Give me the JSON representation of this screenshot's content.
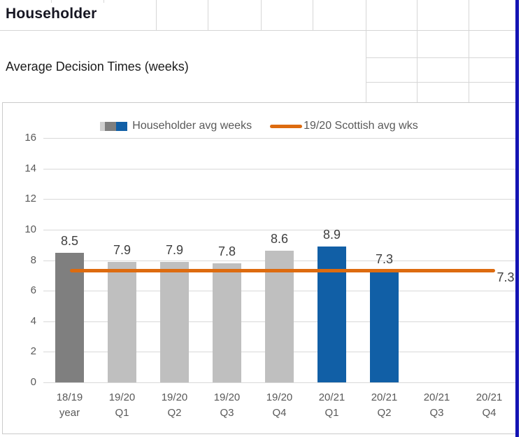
{
  "colors": {
    "bar_gray_dark": "#7f7f7f",
    "bar_gray_light": "#bfbfbf",
    "bar_blue": "#115fa6",
    "line_orange": "#dd6b0f",
    "gridline": "#d9d9d9",
    "axis_text": "#595959",
    "data_label": "#3f3f3f",
    "sheet_grid": "#d6d6d6",
    "chart_border": "#cbcbcb",
    "right_edge_strip": "#1414b4",
    "title_text": "#161622",
    "legend_swatch_extra": "#cfcfcf"
  },
  "sheet": {
    "cell_title": "Householder",
    "cell_subtitle": "Average Decision Times (weeks)"
  },
  "chart_data": {
    "type": "bar",
    "title": "",
    "categories": [
      "18/19 year",
      "19/20 Q1",
      "19/20 Q2",
      "19/20 Q3",
      "19/20 Q4",
      "20/21 Q1",
      "20/21 Q2",
      "20/21 Q3",
      "20/21 Q4"
    ],
    "categories_lines": [
      [
        "18/19",
        "year"
      ],
      [
        "19/20",
        "Q1"
      ],
      [
        "19/20",
        "Q2"
      ],
      [
        "19/20",
        "Q3"
      ],
      [
        "19/20",
        "Q4"
      ],
      [
        "20/21",
        "Q1"
      ],
      [
        "20/21",
        "Q2"
      ],
      [
        "20/21",
        "Q3"
      ],
      [
        "20/21",
        "Q4"
      ]
    ],
    "series": [
      {
        "name": "Householder avg weeks",
        "type": "bar",
        "values": [
          8.5,
          7.9,
          7.9,
          7.8,
          8.6,
          8.9,
          7.3,
          null,
          null
        ],
        "data_labels": [
          "8.5",
          "7.9",
          "7.9",
          "7.8",
          "8.6",
          "8.9",
          "7.3",
          "",
          ""
        ],
        "point_colors": [
          "#7f7f7f",
          "#bfbfbf",
          "#bfbfbf",
          "#bfbfbf",
          "#bfbfbf",
          "#115fa6",
          "#115fa6",
          null,
          null
        ]
      },
      {
        "name": "19/20 Scottish avg wks",
        "type": "line",
        "value": 7.3,
        "end_label": "7.3",
        "color": "#dd6b0f"
      }
    ],
    "xlabel": "",
    "ylabel": "",
    "ylim": [
      0,
      16
    ],
    "yticks": [
      0,
      2,
      4,
      6,
      8,
      10,
      12,
      14,
      16
    ],
    "grid": true,
    "legend_position": "top"
  }
}
